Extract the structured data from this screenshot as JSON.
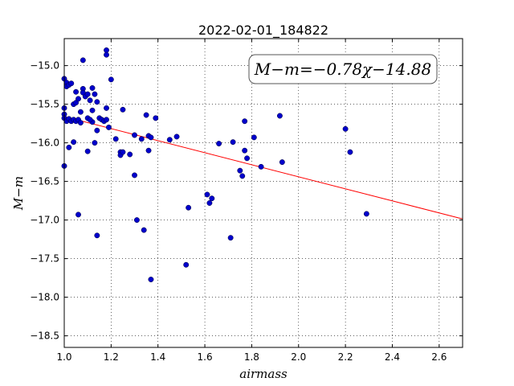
{
  "chart_data": {
    "type": "scatter",
    "title": "2022-02-01_184822",
    "xlabel": "airmass",
    "ylabel": "M−m",
    "xlim": [
      1.0,
      2.7
    ],
    "ylim": [
      -18.65,
      -14.65
    ],
    "y_inverted": true,
    "grid": true,
    "xticks": [
      1.0,
      1.2,
      1.4,
      1.6,
      1.8,
      2.0,
      2.2,
      2.4,
      2.6
    ],
    "xtick_labels": [
      "1.0",
      "1.2",
      "1.4",
      "1.6",
      "1.8",
      "2.0",
      "2.2",
      "2.4",
      "2.6"
    ],
    "yticks": [
      -15.0,
      -15.5,
      -16.0,
      -16.5,
      -17.0,
      -17.5,
      -18.0,
      -18.5
    ],
    "ytick_labels": [
      "−15.0",
      "−15.5",
      "−16.0",
      "−16.5",
      "−17.0",
      "−17.5",
      "−18.0",
      "−18.5"
    ],
    "annotation": "M−m=−0.78χ−14.88",
    "fit": {
      "slope": -0.78,
      "intercept": -14.88,
      "x_range": [
        1.0,
        2.7
      ],
      "color": "#ff0000"
    },
    "marker_color": "#0000cc",
    "points": [
      [
        1.0,
        -15.17
      ],
      [
        1.01,
        -15.22
      ],
      [
        1.01,
        -15.27
      ],
      [
        1.02,
        -15.25
      ],
      [
        1.03,
        -15.23
      ],
      [
        1.0,
        -15.55
      ],
      [
        1.0,
        -15.63
      ],
      [
        1.0,
        -15.68
      ],
      [
        1.01,
        -15.72
      ],
      [
        1.02,
        -15.69
      ],
      [
        1.03,
        -15.72
      ],
      [
        1.04,
        -15.7
      ],
      [
        1.05,
        -15.72
      ],
      [
        1.06,
        -15.7
      ],
      [
        1.07,
        -15.74
      ],
      [
        1.04,
        -15.5
      ],
      [
        1.05,
        -15.48
      ],
      [
        1.05,
        -15.34
      ],
      [
        1.06,
        -15.43
      ],
      [
        1.07,
        -15.6
      ],
      [
        1.08,
        -15.3
      ],
      [
        1.08,
        -15.35
      ],
      [
        1.08,
        -14.93
      ],
      [
        1.09,
        -15.4
      ],
      [
        1.1,
        -15.37
      ],
      [
        1.11,
        -15.45
      ],
      [
        1.12,
        -15.29
      ],
      [
        1.12,
        -15.58
      ],
      [
        1.12,
        -15.73
      ],
      [
        1.13,
        -15.37
      ],
      [
        1.14,
        -15.47
      ],
      [
        1.1,
        -15.68
      ],
      [
        1.11,
        -15.7
      ],
      [
        1.15,
        -15.68
      ],
      [
        1.16,
        -15.7
      ],
      [
        1.17,
        -15.72
      ],
      [
        1.18,
        -15.7
      ],
      [
        1.18,
        -15.55
      ],
      [
        1.18,
        -14.8
      ],
      [
        1.18,
        -14.86
      ],
      [
        1.2,
        -15.18
      ],
      [
        1.19,
        -15.8
      ],
      [
        1.14,
        -15.84
      ],
      [
        1.13,
        -16.0
      ],
      [
        1.1,
        -16.11
      ],
      [
        1.02,
        -16.06
      ],
      [
        1.04,
        -15.99
      ],
      [
        1.0,
        -16.3
      ],
      [
        1.06,
        -16.93
      ],
      [
        1.14,
        -17.2
      ],
      [
        1.22,
        -15.95
      ],
      [
        1.24,
        -16.12
      ],
      [
        1.24,
        -16.16
      ],
      [
        1.25,
        -16.12
      ],
      [
        1.25,
        -15.57
      ],
      [
        1.28,
        -16.15
      ],
      [
        1.3,
        -15.9
      ],
      [
        1.3,
        -16.42
      ],
      [
        1.31,
        -17.0
      ],
      [
        1.33,
        -15.95
      ],
      [
        1.34,
        -17.13
      ],
      [
        1.35,
        -15.64
      ],
      [
        1.36,
        -15.91
      ],
      [
        1.36,
        -16.1
      ],
      [
        1.37,
        -15.93
      ],
      [
        1.37,
        -17.77
      ],
      [
        1.39,
        -15.68
      ],
      [
        1.45,
        -15.96
      ],
      [
        1.48,
        -15.92
      ],
      [
        1.52,
        -17.58
      ],
      [
        1.53,
        -16.84
      ],
      [
        1.61,
        -16.67
      ],
      [
        1.62,
        -16.78
      ],
      [
        1.63,
        -16.72
      ],
      [
        1.66,
        -16.01
      ],
      [
        1.71,
        -17.23
      ],
      [
        1.72,
        -15.99
      ],
      [
        1.75,
        -16.36
      ],
      [
        1.76,
        -16.43
      ],
      [
        1.77,
        -15.72
      ],
      [
        1.77,
        -16.1
      ],
      [
        1.78,
        -16.2
      ],
      [
        1.81,
        -15.93
      ],
      [
        1.84,
        -16.31
      ],
      [
        1.92,
        -15.65
      ],
      [
        1.93,
        -16.25
      ],
      [
        2.2,
        -15.82
      ],
      [
        2.22,
        -16.12
      ],
      [
        2.29,
        -16.92
      ]
    ]
  }
}
